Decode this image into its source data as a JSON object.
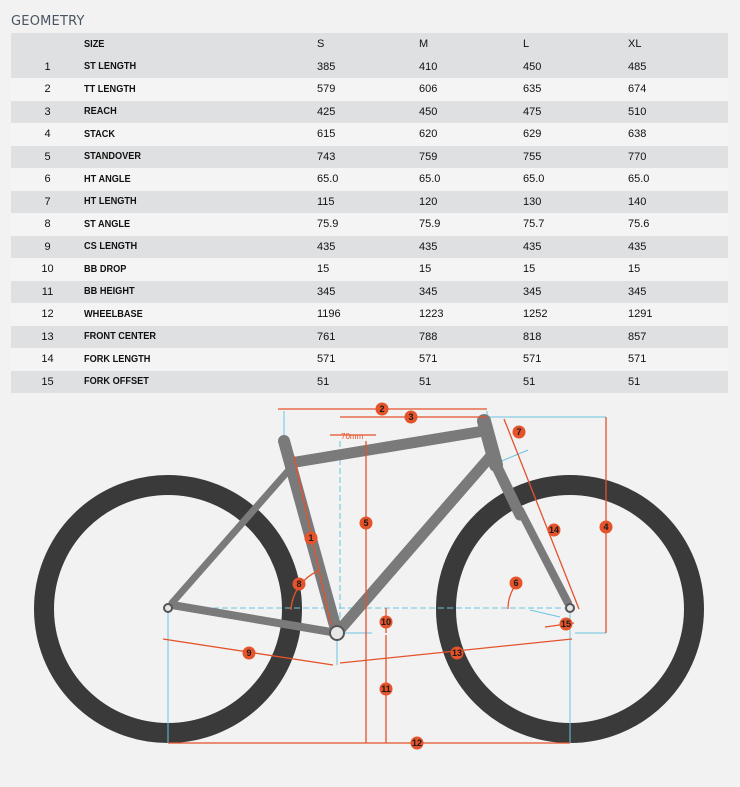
{
  "title": "GEOMETRY",
  "columns": [
    "",
    "SIZE",
    "S",
    "M",
    "L",
    "XL"
  ],
  "rows": [
    {
      "n": "1",
      "label": "ST LENGTH",
      "s": "385",
      "m": "410",
      "l": "450",
      "xl": "485"
    },
    {
      "n": "2",
      "label": "TT LENGTH",
      "s": "579",
      "m": "606",
      "l": "635",
      "xl": "674"
    },
    {
      "n": "3",
      "label": "REACH",
      "s": "425",
      "m": "450",
      "l": "475",
      "xl": "510"
    },
    {
      "n": "4",
      "label": "STACK",
      "s": "615",
      "m": "620",
      "l": "629",
      "xl": "638"
    },
    {
      "n": "5",
      "label": "STANDOVER",
      "s": "743",
      "m": "759",
      "l": "755",
      "xl": "770"
    },
    {
      "n": "6",
      "label": "HT ANGLE",
      "s": "65.0",
      "m": "65.0",
      "l": "65.0",
      "xl": "65.0"
    },
    {
      "n": "7",
      "label": "HT LENGTH",
      "s": "115",
      "m": "120",
      "l": "130",
      "xl": "140"
    },
    {
      "n": "8",
      "label": "ST ANGLE",
      "s": "75.9",
      "m": "75.9",
      "l": "75.7",
      "xl": "75.6"
    },
    {
      "n": "9",
      "label": "CS LENGTH",
      "s": "435",
      "m": "435",
      "l": "435",
      "xl": "435"
    },
    {
      "n": "10",
      "label": "BB DROP",
      "s": "15",
      "m": "15",
      "l": "15",
      "xl": "15"
    },
    {
      "n": "11",
      "label": "BB HEIGHT",
      "s": "345",
      "m": "345",
      "l": "345",
      "xl": "345"
    },
    {
      "n": "12",
      "label": "WHEELBASE",
      "s": "1196",
      "m": "1223",
      "l": "1252",
      "xl": "1291"
    },
    {
      "n": "13",
      "label": "FRONT CENTER",
      "s": "761",
      "m": "788",
      "l": "818",
      "xl": "857"
    },
    {
      "n": "14",
      "label": "FORK LENGTH",
      "s": "571",
      "m": "571",
      "l": "571",
      "xl": "571"
    },
    {
      "n": "15",
      "label": "FORK OFFSET",
      "s": "51",
      "m": "51",
      "l": "51",
      "xl": "51"
    }
  ],
  "diagram": {
    "offset_label": "70mm",
    "markers": [
      "1",
      "2",
      "3",
      "4",
      "5",
      "6",
      "7",
      "8",
      "9",
      "10",
      "11",
      "12",
      "13",
      "14",
      "15"
    ],
    "colors": {
      "dimension": "#e4532a",
      "reference": "#6cc3df",
      "tire": "#3a3a3a",
      "frame": "#7a7a7a"
    }
  }
}
